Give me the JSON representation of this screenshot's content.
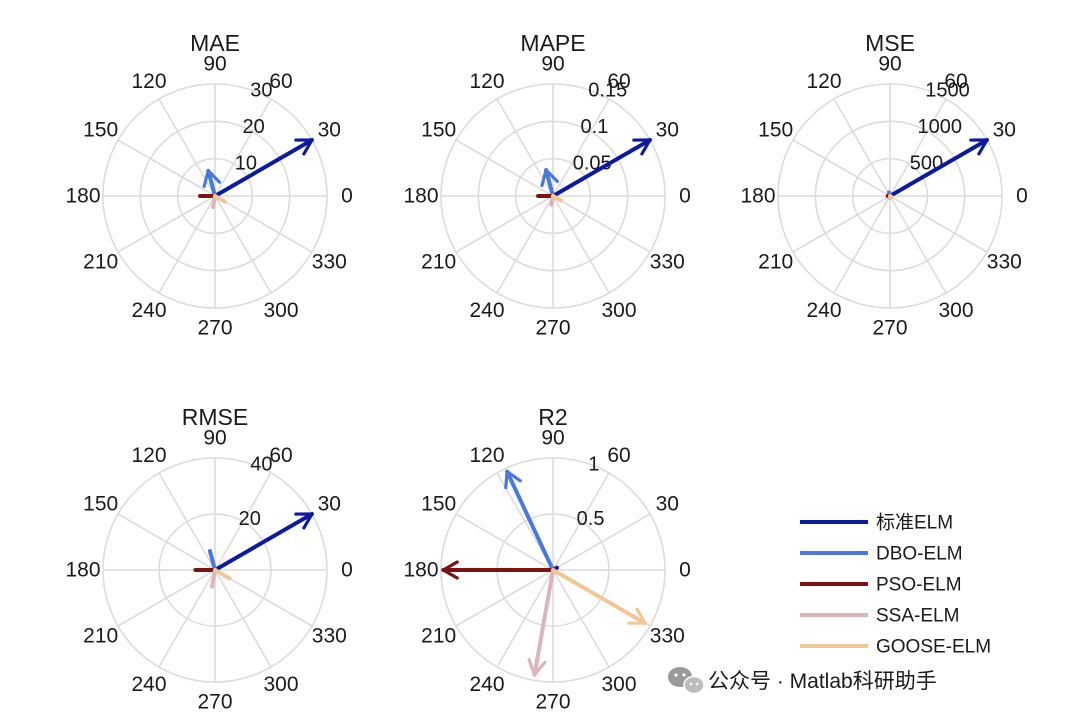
{
  "colors": {
    "标准ELM": "#0d1aa0",
    "DBO-ELM": "#4a78dc",
    "PSO-ELM": "#7a1414",
    "SSA-ELM": "#dcb4bc",
    "GOOSE-ELM": "#f0c896",
    "grid": "#dcdcdc"
  },
  "chart_data": [
    {
      "type": "polar-compass",
      "title": "MAE",
      "theta_ticks": [
        "0",
        "30",
        "60",
        "90",
        "120",
        "150",
        "180",
        "210",
        "240",
        "270",
        "300",
        "330"
      ],
      "r_ticks": [
        "10",
        "20",
        "30"
      ],
      "rmax": 30,
      "series": [
        {
          "name": "标准ELM",
          "angle_deg": 30,
          "value": 30
        },
        {
          "name": "DBO-ELM",
          "angle_deg": 105,
          "value": 7
        },
        {
          "name": "PSO-ELM",
          "angle_deg": 180,
          "value": 4
        },
        {
          "name": "SSA-ELM",
          "angle_deg": 260,
          "value": 3
        },
        {
          "name": "GOOSE-ELM",
          "angle_deg": 330,
          "value": 3
        }
      ]
    },
    {
      "type": "polar-compass",
      "title": "MAPE",
      "theta_ticks": [
        "0",
        "30",
        "60",
        "90",
        "120",
        "150",
        "180",
        "210",
        "240",
        "270",
        "300",
        "330"
      ],
      "r_ticks": [
        "0.05",
        "0.1",
        "0.15"
      ],
      "rmax": 0.15,
      "series": [
        {
          "name": "标准ELM",
          "angle_deg": 30,
          "value": 0.15
        },
        {
          "name": "DBO-ELM",
          "angle_deg": 105,
          "value": 0.036
        },
        {
          "name": "PSO-ELM",
          "angle_deg": 180,
          "value": 0.02
        },
        {
          "name": "SSA-ELM",
          "angle_deg": 260,
          "value": 0.012
        },
        {
          "name": "GOOSE-ELM",
          "angle_deg": 330,
          "value": 0.012
        }
      ]
    },
    {
      "type": "polar-compass",
      "title": "MSE",
      "theta_ticks": [
        "0",
        "30",
        "60",
        "90",
        "120",
        "150",
        "180",
        "210",
        "240",
        "270",
        "300",
        "330"
      ],
      "r_ticks": [
        "500",
        "1000",
        "1500"
      ],
      "rmax": 1500,
      "series": [
        {
          "name": "标准ELM",
          "angle_deg": 30,
          "value": 1500
        },
        {
          "name": "DBO-ELM",
          "angle_deg": 105,
          "value": 50
        },
        {
          "name": "PSO-ELM",
          "angle_deg": 180,
          "value": 30
        },
        {
          "name": "SSA-ELM",
          "angle_deg": 260,
          "value": 30
        },
        {
          "name": "GOOSE-ELM",
          "angle_deg": 330,
          "value": 30
        }
      ]
    },
    {
      "type": "polar-compass",
      "title": "RMSE",
      "theta_ticks": [
        "0",
        "30",
        "60",
        "90",
        "120",
        "150",
        "180",
        "210",
        "240",
        "270",
        "300",
        "330"
      ],
      "r_ticks": [
        "20",
        "40"
      ],
      "rmax": 40,
      "series": [
        {
          "name": "标准ELM",
          "angle_deg": 30,
          "value": 40
        },
        {
          "name": "DBO-ELM",
          "angle_deg": 105,
          "value": 7
        },
        {
          "name": "PSO-ELM",
          "angle_deg": 180,
          "value": 7
        },
        {
          "name": "SSA-ELM",
          "angle_deg": 260,
          "value": 6
        },
        {
          "name": "GOOSE-ELM",
          "angle_deg": 330,
          "value": 6
        }
      ]
    },
    {
      "type": "polar-compass",
      "title": "R2",
      "theta_ticks": [
        "0",
        "30",
        "60",
        "90",
        "120",
        "150",
        "180",
        "210",
        "240",
        "270",
        "300",
        "330"
      ],
      "r_ticks": [
        "0.5",
        "1"
      ],
      "rmax": 1,
      "series": [
        {
          "name": "标准ELM",
          "angle_deg": 30,
          "value": 0.04
        },
        {
          "name": "DBO-ELM",
          "angle_deg": 115,
          "value": 0.97
        },
        {
          "name": "PSO-ELM",
          "angle_deg": 180,
          "value": 0.98
        },
        {
          "name": "SSA-ELM",
          "angle_deg": 260,
          "value": 0.95
        },
        {
          "name": "GOOSE-ELM",
          "angle_deg": 330,
          "value": 0.95
        }
      ]
    }
  ],
  "legend": [
    "标准ELM",
    "DBO-ELM",
    "PSO-ELM",
    "SSA-ELM",
    "GOOSE-ELM"
  ],
  "watermark": {
    "text": "公众号 · Matlab科研助手",
    "icon": "wechat-icon"
  }
}
